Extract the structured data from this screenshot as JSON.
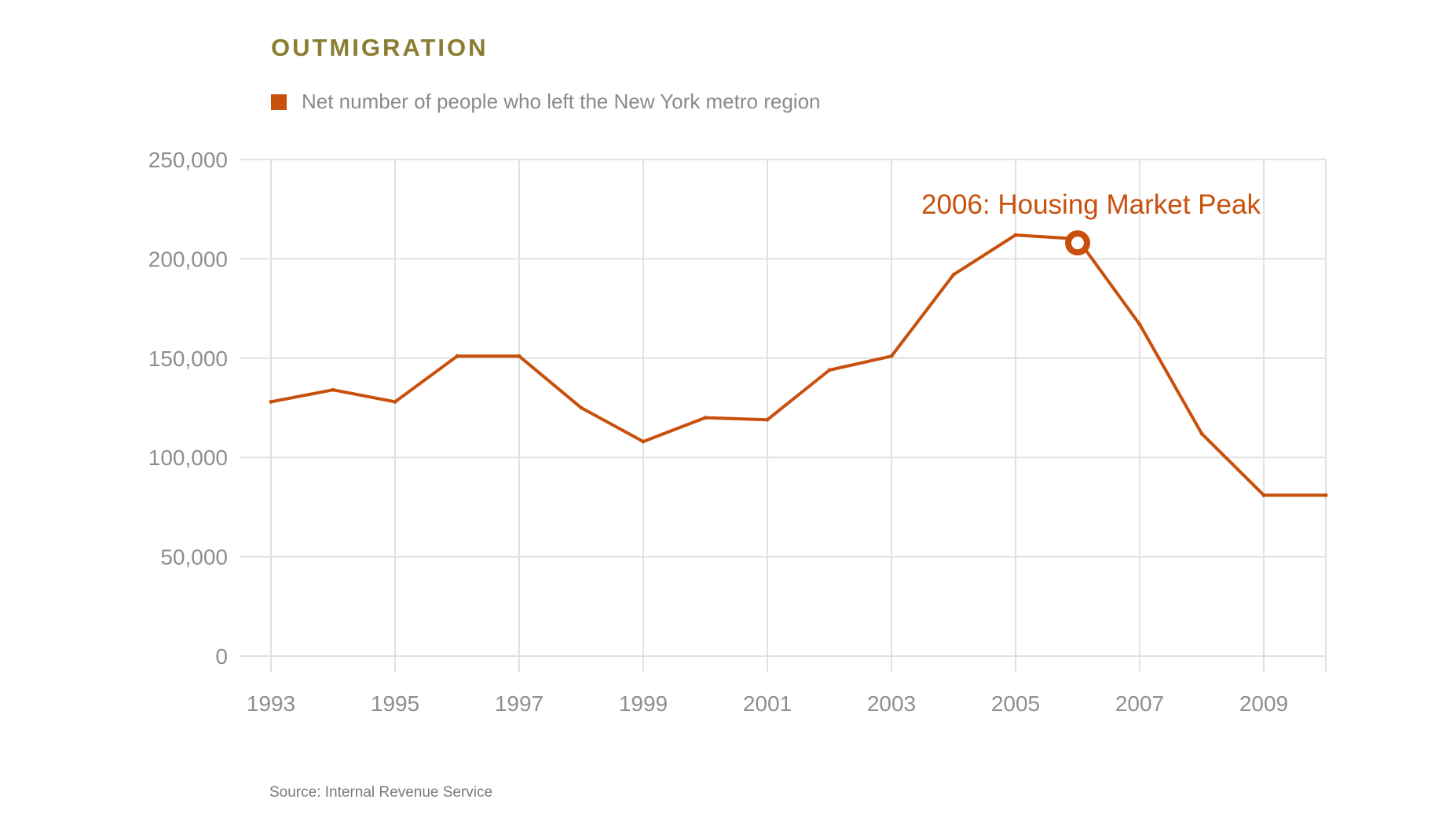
{
  "colors": {
    "title": "#8a7d32",
    "series": "#c9500c",
    "grid": "#e1e1e1",
    "tick_text": "#8e8e8e",
    "legend_text": "#8a8a8a",
    "source_text": "#7a7a7a"
  },
  "chart_data": {
    "type": "line",
    "title": "OUTMIGRATION",
    "legend_position": "top-left",
    "grid": true,
    "series": [
      {
        "name": "Net number of people who left the New York metro region",
        "x": [
          1993,
          1994,
          1995,
          1996,
          1997,
          1998,
          1999,
          2000,
          2001,
          2002,
          2003,
          2004,
          2005,
          2006,
          2007,
          2008,
          2009,
          2010
        ],
        "values": [
          128000,
          134000,
          128000,
          151000,
          151000,
          125000,
          108000,
          120000,
          119000,
          144000,
          151000,
          192000,
          212000,
          210000,
          167000,
          112000,
          81000,
          81000
        ]
      }
    ],
    "xlim": [
      1993,
      2010
    ],
    "ylim": [
      0,
      250000
    ],
    "xticks": [
      1993,
      1995,
      1997,
      1999,
      2001,
      2003,
      2005,
      2007,
      2009
    ],
    "xtick_labels": [
      "1993",
      "1995",
      "1997",
      "1999",
      "2001",
      "2003",
      "2005",
      "2007",
      "2009"
    ],
    "yticks": [
      0,
      50000,
      100000,
      150000,
      200000,
      250000
    ],
    "ytick_labels": [
      "0",
      "50,000",
      "100,000",
      "150,000",
      "200,000",
      "250,000"
    ],
    "annotations": [
      {
        "x": 2006,
        "y": 208000,
        "text": "2006: Housing Market Peak"
      }
    ],
    "source": "Source: Internal Revenue Service"
  }
}
